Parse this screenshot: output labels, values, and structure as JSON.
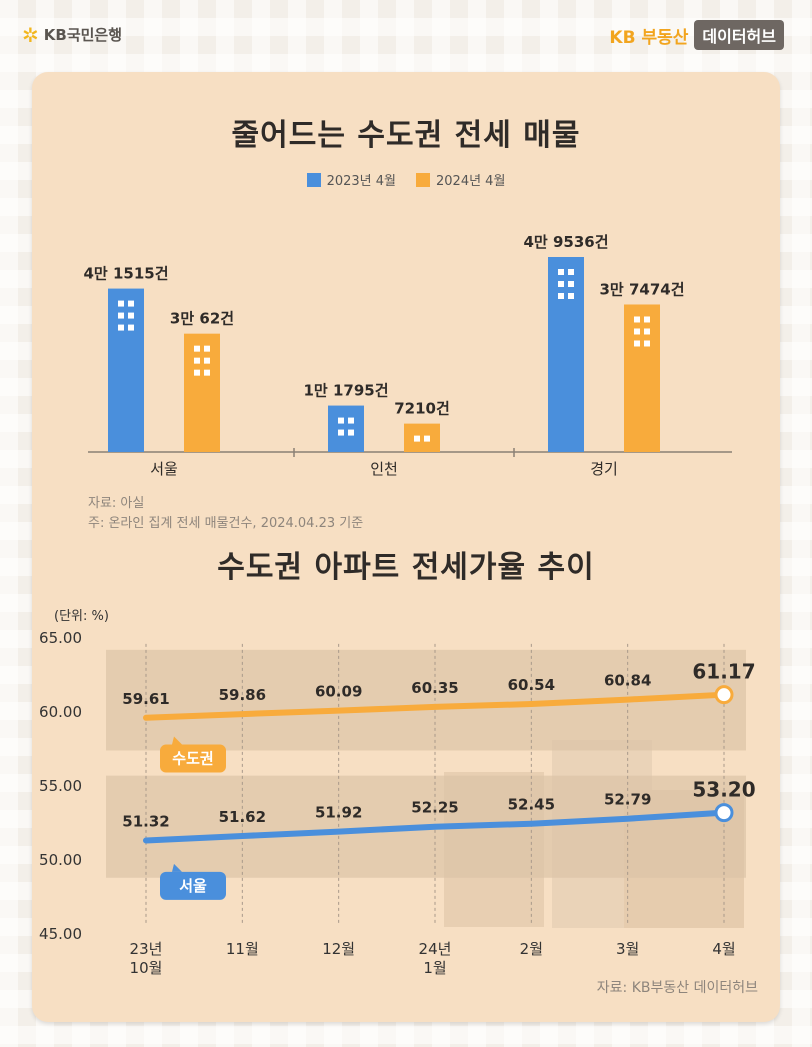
{
  "header": {
    "bank_logo_text": "KB국민은행",
    "hub_brand": "KB 부동산",
    "hub_tag": "데이터허브"
  },
  "colors": {
    "blue": "#4a8fdc",
    "orange": "#f8ab3c",
    "card_bg": "#f7dfc3",
    "band": "#dcc3a7"
  },
  "chart_data": [
    {
      "type": "bar",
      "title": "줄어드는 수도권 전세 매물",
      "categories": [
        "서울",
        "인천",
        "경기"
      ],
      "series": [
        {
          "name": "2023년 4월",
          "values": [
            41515,
            11795,
            49536
          ],
          "labels": [
            "4만 1515건",
            "1만 1795건",
            "4만 9536건"
          ]
        },
        {
          "name": "2024년 4월",
          "values": [
            30062,
            7210,
            37474
          ],
          "labels": [
            "3만 62건",
            "7210건",
            "3만 7474건"
          ]
        }
      ],
      "source": "자료: 아실",
      "note": "주: 온라인 집계 전세 매물건수, 2024.04.23 기준"
    },
    {
      "type": "line",
      "title": "수도권 아파트 전세가율 추이",
      "unit_label": "(단위: %)",
      "x": [
        "23년\n10월",
        "11월",
        "12월",
        "24년\n1월",
        "2월",
        "3월",
        "4월"
      ],
      "ylim": [
        45,
        65
      ],
      "yticks": [
        "65.00",
        "60.00",
        "55.00",
        "50.00",
        "45.00"
      ],
      "series": [
        {
          "name": "수도권",
          "values": [
            59.61,
            59.86,
            60.09,
            60.35,
            60.54,
            60.84,
            61.17
          ]
        },
        {
          "name": "서울",
          "values": [
            51.32,
            51.62,
            51.92,
            52.25,
            52.45,
            52.79,
            53.2
          ]
        }
      ],
      "source": "자료: KB부동산 데이터허브"
    }
  ]
}
